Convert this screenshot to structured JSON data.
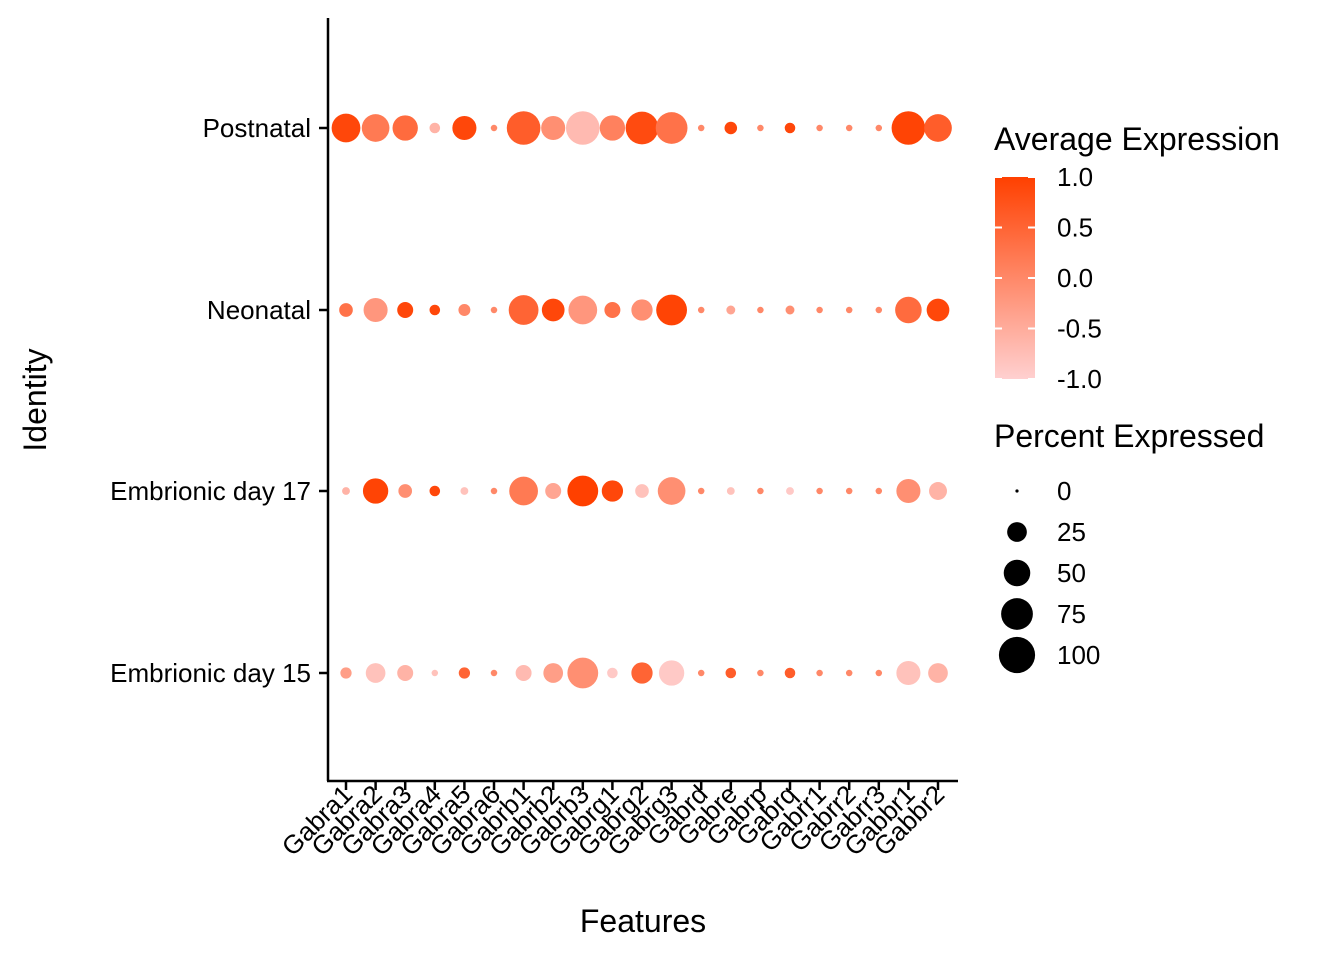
{
  "chart_data": {
    "type": "scatter",
    "subtype": "dot-plot",
    "xlabel": "Features",
    "ylabel": "Identity",
    "features": [
      "Gabra1",
      "Gabra2",
      "Gabra3",
      "Gabra4",
      "Gabra5",
      "Gabra6",
      "Gabrb1",
      "Gabrb2",
      "Gabrb3",
      "Gabrg1",
      "Gabrg2",
      "Gabrg3",
      "Gabrd",
      "Gabre",
      "Gabrp",
      "Gabrq",
      "Gabrr1",
      "Gabrr2",
      "Gabrr3",
      "Gabbr1",
      "Gabbr2"
    ],
    "identities": [
      "Embrionic day 15",
      "Embrionic day 17",
      "Neonatal",
      "Postnatal"
    ],
    "size_legend": {
      "title": "Percent Expressed",
      "breaks": [
        0,
        25,
        50,
        75,
        100
      ],
      "labels": [
        "0",
        "25",
        "50",
        "75",
        "100"
      ]
    },
    "color_legend": {
      "title": "Average Expression",
      "low": -1.0,
      "high": 1.0,
      "labels": [
        "1.0",
        "0.5",
        "0.0",
        "-0.5",
        "-1.0"
      ],
      "low_color": "#ffd0d0",
      "high_color": "#ff4000"
    },
    "grid": false,
    "legend_position": "right",
    "series": [
      {
        "identity": "Postnatal",
        "pct": [
          60,
          55,
          45,
          5,
          40,
          1,
          85,
          40,
          85,
          45,
          80,
          75,
          1,
          8,
          1,
          5,
          1,
          1,
          1,
          85,
          55
        ],
        "avg": [
          0.9,
          0.2,
          0.4,
          -0.6,
          0.9,
          0,
          0.6,
          -0.1,
          -0.7,
          0.1,
          0.85,
          0.3,
          0,
          0.9,
          0,
          0.9,
          0,
          0,
          0,
          0.95,
          0.6
        ]
      },
      {
        "identity": "Neonatal",
        "pct": [
          10,
          40,
          15,
          5,
          7,
          1,
          65,
          35,
          60,
          15,
          30,
          70,
          1,
          3,
          1,
          3,
          1,
          1,
          1,
          50,
          35
        ],
        "avg": [
          0.3,
          -0.2,
          0.9,
          0.9,
          0,
          0,
          0.5,
          0.9,
          -0.2,
          0.3,
          -0.1,
          0.95,
          0,
          -0.4,
          0,
          -0.1,
          0,
          0,
          0,
          0.4,
          0.9
        ]
      },
      {
        "identity": "Embrionic day 17",
        "pct": [
          2,
          45,
          10,
          5,
          2,
          1,
          60,
          15,
          70,
          30,
          10,
          55,
          1,
          2,
          1,
          2,
          1,
          1,
          1,
          40,
          20
        ],
        "avg": [
          -0.6,
          0.95,
          -0.1,
          0.9,
          -0.8,
          0,
          0.2,
          -0.4,
          1.0,
          0.9,
          -0.8,
          -0.1,
          0,
          -0.8,
          0,
          -0.9,
          0,
          0,
          0,
          -0.1,
          -0.6
        ]
      },
      {
        "identity": "Embrionic day 15",
        "pct": [
          6,
          25,
          15,
          1,
          6,
          1,
          15,
          25,
          70,
          5,
          30,
          45,
          1,
          5,
          1,
          5,
          1,
          1,
          1,
          40,
          25
        ],
        "avg": [
          -0.3,
          -0.8,
          -0.6,
          -0.8,
          0.5,
          0,
          -0.7,
          -0.3,
          -0.1,
          -0.9,
          0.5,
          -0.9,
          0,
          0.6,
          0,
          0.6,
          0,
          0,
          0,
          -0.8,
          -0.6
        ]
      }
    ]
  }
}
